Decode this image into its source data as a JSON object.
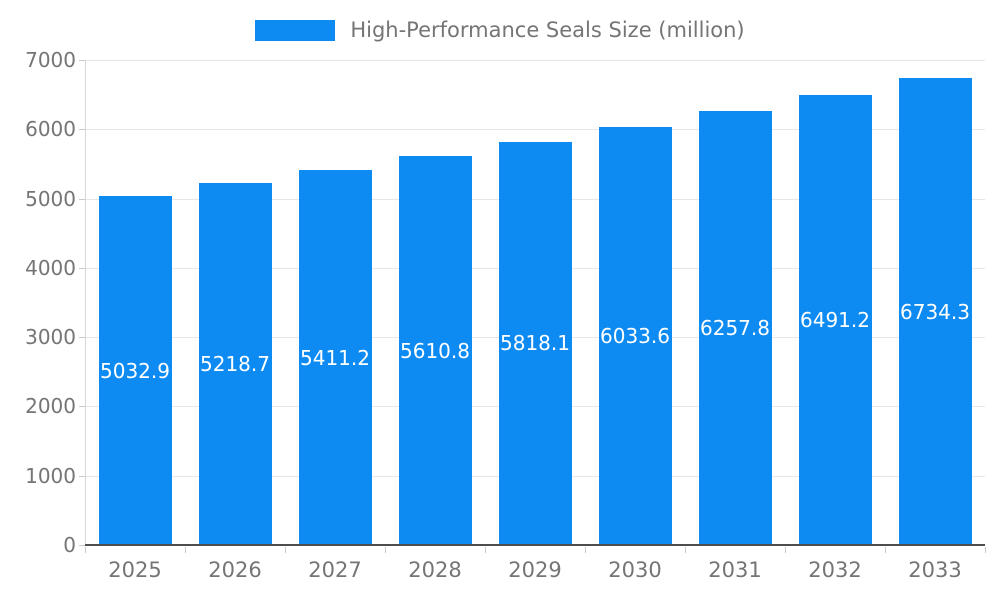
{
  "legend": {
    "label": "High-Performance Seals Size (million)"
  },
  "chart_data": {
    "type": "bar",
    "title": "High-Performance Seals Size (million)",
    "categories": [
      "2025",
      "2026",
      "2027",
      "2028",
      "2029",
      "2030",
      "2031",
      "2032",
      "2033"
    ],
    "values": [
      5032.9,
      5218.7,
      5411.2,
      5610.8,
      5818.1,
      6033.6,
      6257.8,
      6491.2,
      6734.3
    ],
    "data_labels": [
      "5032.9",
      "5218.7",
      "5411.2",
      "5610.8",
      "5818.1",
      "6033.6",
      "6257.8",
      "6491.2",
      "6734.3"
    ],
    "xlabel": "",
    "ylabel": "",
    "ylim": [
      0,
      7000
    ],
    "yticks": [
      0,
      1000,
      2000,
      3000,
      4000,
      5000,
      6000,
      7000
    ],
    "grid": true,
    "legend_position": "top",
    "colors": {
      "bar": "#0d8bf2",
      "bar_label": "#ffffff",
      "axis_text": "#757575",
      "gridline": "#e6e6e6",
      "axis_line": "#4d4d4d"
    }
  }
}
